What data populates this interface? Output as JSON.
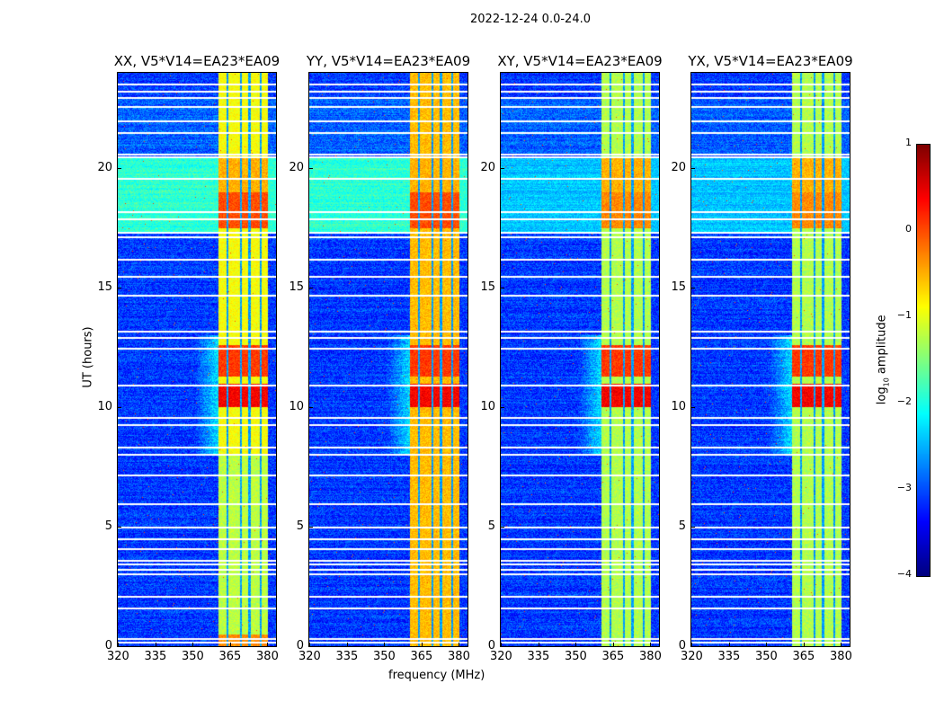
{
  "chart_data": {
    "type": "heatmap",
    "title": "2022-12-24 0.0-24.0",
    "xlabel": "frequency (MHz)",
    "ylabel": "UT (hours)",
    "xlim": [
      320,
      383.6
    ],
    "ylim": [
      0,
      24
    ],
    "xticks": [
      "320",
      "335",
      "350",
      "365",
      "380"
    ],
    "xtick_values": [
      320,
      335,
      350,
      365,
      380
    ],
    "yticks": [
      "0",
      "5",
      "10",
      "15",
      "20"
    ],
    "ytick_values": [
      0,
      5,
      10,
      15,
      20
    ],
    "panels": [
      {
        "title": "XX, V5*V14=EA23*EA09"
      },
      {
        "title": "YY, V5*V14=EA23*EA09"
      },
      {
        "title": "XY, V5*V14=EA23*EA09"
      },
      {
        "title": "YX, V5*V14=EA23*EA09"
      }
    ],
    "colorbar": {
      "label": "log10 amplitude",
      "label_main": "log",
      "label_sub": "10",
      "label_rest": " amplitude",
      "range": [
        -4,
        1
      ],
      "ticks": [
        "1",
        "0",
        "−1",
        "−2",
        "−3",
        "−4"
      ],
      "tick_values": [
        1,
        0,
        -1,
        -2,
        -3,
        -4
      ],
      "colormap": "jet"
    }
  }
}
